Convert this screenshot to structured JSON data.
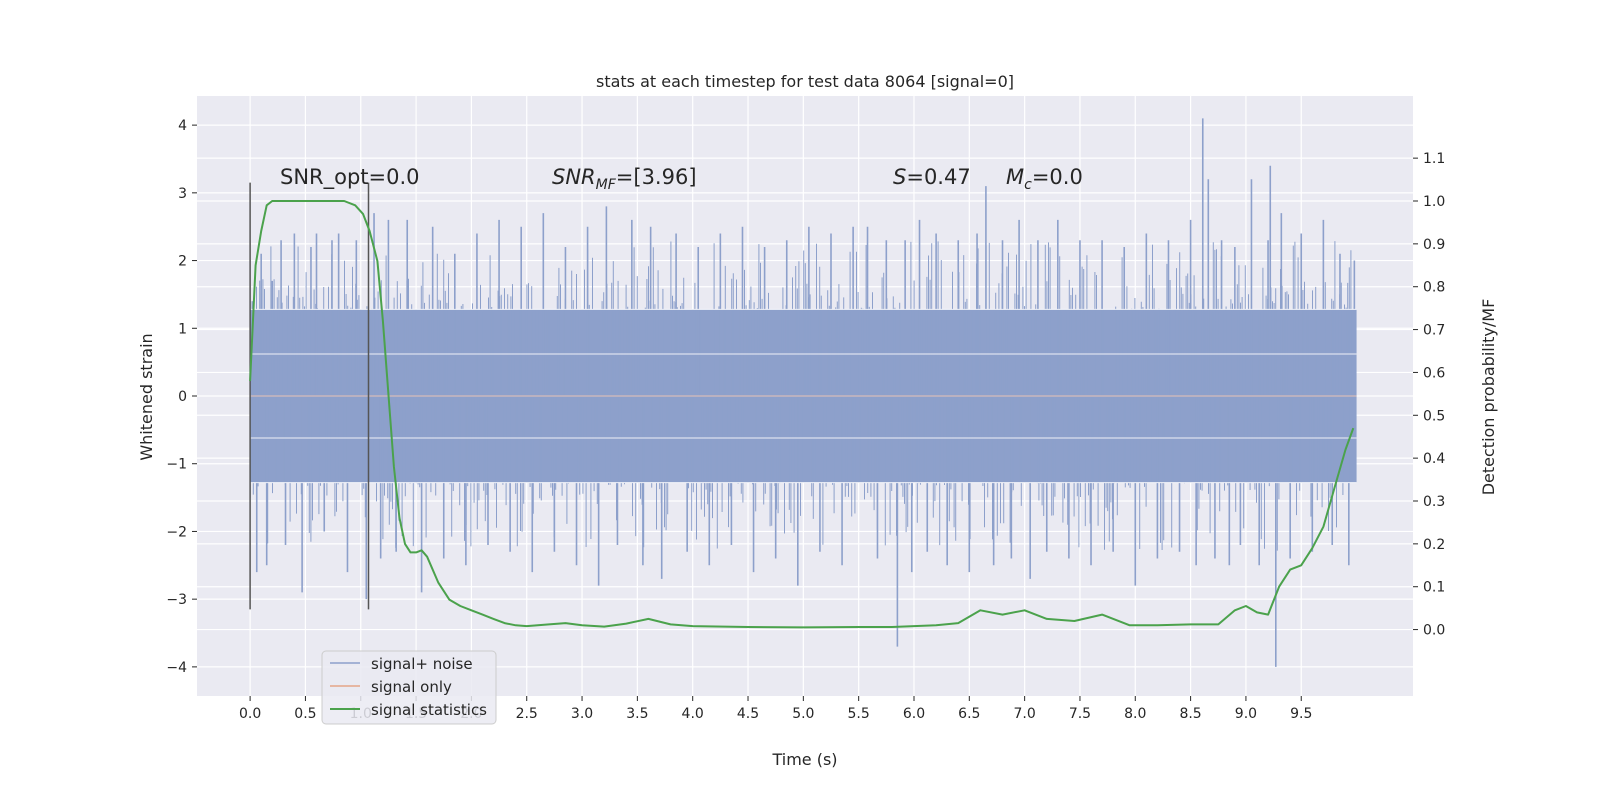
{
  "chart_data": {
    "type": "line",
    "title": "stats at each timestep for test data 8064 [signal=0]",
    "xlabel": "Time (s)",
    "ylabel": "Whitened strain",
    "y2label": "Detection probability/MF",
    "xlim": [
      -0.48,
      10.51
    ],
    "ylim": [
      -4.43,
      4.43
    ],
    "y2lim": [
      -0.155,
      1.245
    ],
    "x_ticks": [
      "0.0",
      "0.5",
      "1.0",
      "1.5",
      "2.0",
      "2.5",
      "3.0",
      "3.5",
      "4.0",
      "4.5",
      "5.0",
      "5.5",
      "6.0",
      "6.5",
      "7.0",
      "7.5",
      "8.0",
      "8.5",
      "9.0",
      "9.5"
    ],
    "y_ticks": [
      "4",
      "3",
      "2",
      "1",
      "0",
      "−1",
      "−2",
      "−3",
      "−4"
    ],
    "y2_ticks": [
      "1.1",
      "1.0",
      "0.9",
      "0.8",
      "0.7",
      "0.6",
      "0.5",
      "0.4",
      "0.3",
      "0.2",
      "0.1",
      "0.0"
    ],
    "grid": true,
    "legend_position": "lower-left",
    "annotations": {
      "snr_opt": "SNR_opt=0.0",
      "snr_mf_base": "SNR",
      "snr_mf_sub": "MF",
      "snr_mf_value": "=[3.96]",
      "s_symbol": "S",
      "s_value": "=0.47",
      "mc_base": "M",
      "mc_sub": "c",
      "mc_value": "=0.0"
    },
    "vertical_markers_x": [
      0.0,
      1.07
    ],
    "vertical_markers_y": [
      -3.15,
      3.15
    ],
    "noise_series": {
      "name": "signal+ noise",
      "color": "#8da0cb",
      "x_range": [
        0.0,
        10.0
      ],
      "dense_band": [
        -1.28,
        1.28
      ],
      "spikes": [
        [
          0.02,
          1.4
        ],
        [
          0.06,
          -2.6
        ],
        [
          0.1,
          2.1
        ],
        [
          0.15,
          -2.5
        ],
        [
          0.2,
          1.7
        ],
        [
          0.28,
          2.3
        ],
        [
          0.32,
          -2.2
        ],
        [
          0.4,
          2.4
        ],
        [
          0.47,
          -2.9
        ],
        [
          0.55,
          2.2
        ],
        [
          0.6,
          2.4
        ],
        [
          0.67,
          -2.0
        ],
        [
          0.74,
          2.3
        ],
        [
          0.8,
          2.4
        ],
        [
          0.88,
          -2.6
        ],
        [
          0.96,
          2.3
        ],
        [
          1.05,
          -3.0
        ],
        [
          1.12,
          2.7
        ],
        [
          1.18,
          -2.4
        ],
        [
          1.25,
          2.6
        ],
        [
          1.32,
          -2.3
        ],
        [
          1.42,
          2.6
        ],
        [
          1.55,
          -2.9
        ],
        [
          1.65,
          2.5
        ],
        [
          1.75,
          -2.4
        ],
        [
          1.85,
          2.1
        ],
        [
          1.95,
          -2.5
        ],
        [
          2.05,
          2.4
        ],
        [
          2.15,
          -2.2
        ],
        [
          2.25,
          2.6
        ],
        [
          2.35,
          -2.3
        ],
        [
          2.45,
          2.5
        ],
        [
          2.55,
          -2.6
        ],
        [
          2.65,
          2.7
        ],
        [
          2.75,
          -2.3
        ],
        [
          2.85,
          2.2
        ],
        [
          2.95,
          -2.5
        ],
        [
          3.05,
          2.5
        ],
        [
          3.15,
          -2.8
        ],
        [
          3.22,
          2.8
        ],
        [
          3.32,
          -2.2
        ],
        [
          3.45,
          2.6
        ],
        [
          3.55,
          -2.5
        ],
        [
          3.62,
          2.5
        ],
        [
          3.72,
          -2.7
        ],
        [
          3.85,
          2.4
        ],
        [
          3.95,
          -2.3
        ],
        [
          4.05,
          2.2
        ],
        [
          4.15,
          -2.5
        ],
        [
          4.25,
          2.4
        ],
        [
          4.35,
          -2.2
        ],
        [
          4.45,
          2.5
        ],
        [
          4.55,
          -2.6
        ],
        [
          4.65,
          2.2
        ],
        [
          4.75,
          -2.4
        ],
        [
          4.85,
          2.3
        ],
        [
          4.95,
          -2.8
        ],
        [
          5.05,
          2.5
        ],
        [
          5.15,
          -2.3
        ],
        [
          5.25,
          2.4
        ],
        [
          5.35,
          -2.5
        ],
        [
          5.45,
          2.5
        ],
        [
          5.58,
          2.5
        ],
        [
          5.67,
          -2.4
        ],
        [
          5.75,
          2.3
        ],
        [
          5.85,
          -3.7
        ],
        [
          5.92,
          2.3
        ],
        [
          5.98,
          -2.6
        ],
        [
          6.05,
          2.6
        ],
        [
          6.12,
          -2.3
        ],
        [
          6.2,
          2.4
        ],
        [
          6.3,
          -2.5
        ],
        [
          6.4,
          2.3
        ],
        [
          6.5,
          -2.6
        ],
        [
          6.57,
          2.4
        ],
        [
          6.65,
          3.1
        ],
        [
          6.72,
          -2.5
        ],
        [
          6.8,
          2.3
        ],
        [
          6.88,
          -2.4
        ],
        [
          6.95,
          2.6
        ],
        [
          7.05,
          -2.7
        ],
        [
          7.12,
          2.3
        ],
        [
          7.2,
          -2.3
        ],
        [
          7.3,
          2.6
        ],
        [
          7.4,
          -2.4
        ],
        [
          7.5,
          2.3
        ],
        [
          7.6,
          -2.5
        ],
        [
          7.7,
          2.3
        ],
        [
          7.8,
          -2.3
        ],
        [
          7.9,
          2.2
        ],
        [
          8.0,
          -2.8
        ],
        [
          8.1,
          2.4
        ],
        [
          8.2,
          -2.4
        ],
        [
          8.3,
          2.3
        ],
        [
          8.4,
          -2.3
        ],
        [
          8.5,
          2.6
        ],
        [
          8.55,
          -2.5
        ],
        [
          8.61,
          4.1
        ],
        [
          8.66,
          3.2
        ],
        [
          8.72,
          -2.4
        ],
        [
          8.78,
          2.3
        ],
        [
          8.85,
          -2.5
        ],
        [
          8.9,
          2.2
        ],
        [
          8.95,
          -2.2
        ],
        [
          9.05,
          3.2
        ],
        [
          9.12,
          -2.5
        ],
        [
          9.2,
          2.3
        ],
        [
          9.22,
          3.4
        ],
        [
          9.27,
          -4.0
        ],
        [
          9.32,
          2.7
        ],
        [
          9.4,
          -2.4
        ],
        [
          9.5,
          2.4
        ],
        [
          9.6,
          -2.3
        ],
        [
          9.7,
          2.6
        ],
        [
          9.78,
          -2.2
        ],
        [
          9.85,
          2.1
        ],
        [
          9.93,
          -2.5
        ],
        [
          9.98,
          2.0
        ]
      ]
    },
    "signal_series": {
      "name": "signal only",
      "color": "#e5a488",
      "x": [
        0.0,
        10.0
      ],
      "y": [
        0.0,
        0.0
      ]
    },
    "stats_series": {
      "name": "signal statistics",
      "color": "#4ba24c",
      "x": [
        0.0,
        0.05,
        0.1,
        0.15,
        0.2,
        0.3,
        0.5,
        0.7,
        0.85,
        0.95,
        1.02,
        1.08,
        1.15,
        1.2,
        1.25,
        1.3,
        1.35,
        1.4,
        1.45,
        1.5,
        1.55,
        1.6,
        1.7,
        1.8,
        1.9,
        2.0,
        2.1,
        2.2,
        2.3,
        2.4,
        2.5,
        2.6,
        2.7,
        2.85,
        3.0,
        3.2,
        3.4,
        3.6,
        3.8,
        4.0,
        4.5,
        5.0,
        5.5,
        5.8,
        6.0,
        6.2,
        6.4,
        6.6,
        6.8,
        7.0,
        7.2,
        7.45,
        7.7,
        7.95,
        8.2,
        8.5,
        8.75,
        8.9,
        9.0,
        9.1,
        9.2,
        9.3,
        9.4,
        9.5,
        9.6,
        9.7,
        9.8,
        9.9,
        9.97
      ],
      "y": [
        0.58,
        0.85,
        0.93,
        0.99,
        1.0,
        1.0,
        1.0,
        1.0,
        1.0,
        0.99,
        0.97,
        0.93,
        0.86,
        0.72,
        0.55,
        0.38,
        0.26,
        0.2,
        0.18,
        0.18,
        0.185,
        0.17,
        0.11,
        0.07,
        0.055,
        0.045,
        0.035,
        0.025,
        0.015,
        0.01,
        0.008,
        0.01,
        0.012,
        0.015,
        0.01,
        0.007,
        0.014,
        0.025,
        0.012,
        0.008,
        0.006,
        0.005,
        0.006,
        0.006,
        0.008,
        0.01,
        0.015,
        0.045,
        0.035,
        0.045,
        0.025,
        0.02,
        0.035,
        0.01,
        0.01,
        0.012,
        0.012,
        0.045,
        0.055,
        0.04,
        0.035,
        0.1,
        0.14,
        0.15,
        0.19,
        0.24,
        0.33,
        0.42,
        0.47
      ]
    }
  }
}
